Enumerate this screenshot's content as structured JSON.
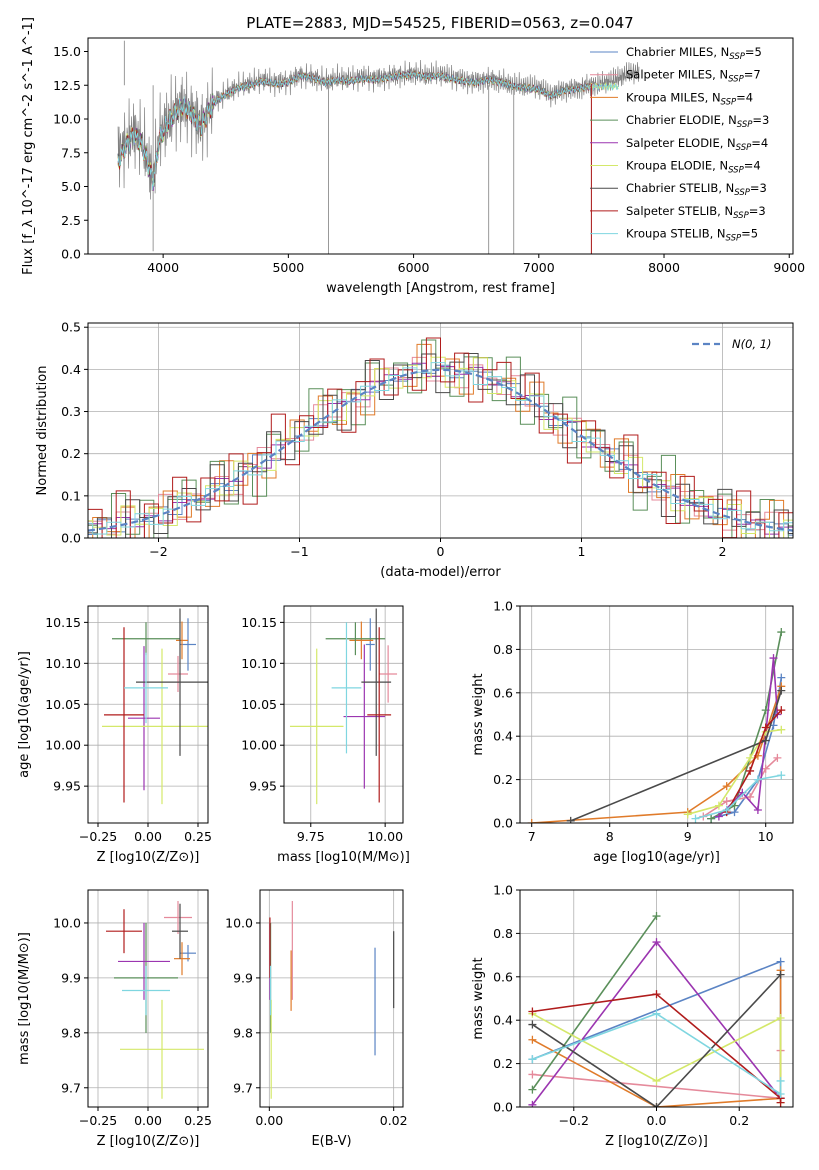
{
  "figure": {
    "title": "PLATE=2883, MJD=54525, FIBERID=0563, z=0.047"
  },
  "colors": [
    "#5b84c4",
    "#e58a9b",
    "#e07b2a",
    "#5a8f5a",
    "#9b35b0",
    "#d4e86a",
    "#4a4a4a",
    "#b01c1c",
    "#7fd6e0"
  ],
  "chart_data": [
    {
      "id": "spectrum",
      "type": "line",
      "xlabel": "wavelength [Angstrom, rest frame]",
      "ylabel": "Flux [f_λ 10^-17 erg cm^-2 s^-1 A^-1]",
      "xlim": [
        3400,
        9030
      ],
      "ylim": [
        0,
        16
      ],
      "xticks": [
        4000,
        5000,
        6000,
        7000,
        8000,
        9000
      ],
      "yticks": [
        0.0,
        2.5,
        5.0,
        7.5,
        10.0,
        12.5,
        15.0
      ],
      "grid": false,
      "legend": "top-right",
      "observed": {
        "color": "#808080",
        "x": [
          3640,
          3700,
          3760,
          3820,
          3870,
          3920,
          3970,
          4020,
          4080,
          4150,
          4220,
          4300,
          4400,
          4500,
          4600,
          4700,
          4800,
          4900,
          5000,
          5100,
          5200,
          5300,
          5400,
          5500,
          5600,
          5700,
          5800,
          5900,
          6000,
          6100,
          6200,
          6300,
          6400,
          6500,
          6600,
          6700,
          6800,
          6900,
          7000,
          7100,
          7200,
          7300,
          7400,
          7500,
          7600,
          7700,
          7800
        ],
        "y": [
          7.5,
          8.2,
          9.0,
          8.5,
          7.2,
          5.5,
          8.8,
          9.6,
          10.4,
          11.0,
          10.6,
          9.5,
          11.3,
          11.9,
          12.4,
          12.6,
          12.9,
          12.7,
          12.8,
          13.3,
          13.1,
          12.8,
          13.0,
          12.9,
          13.1,
          13.0,
          13.2,
          13.3,
          13.4,
          13.2,
          13.3,
          13.1,
          12.9,
          12.8,
          13.0,
          12.8,
          12.5,
          12.4,
          12.3,
          11.8,
          12.2,
          12.3,
          12.5,
          12.6,
          12.9,
          13.3,
          13.5
        ]
      },
      "model": {
        "x": [
          3640,
          3700,
          3760,
          3820,
          3870,
          3920,
          3970,
          4020,
          4080,
          4150,
          4220,
          4300,
          4400,
          4500,
          4600,
          4700,
          4800,
          4900,
          5000,
          5100,
          5200,
          5300,
          5400,
          5500,
          5600,
          5700,
          5800,
          5900,
          6000,
          6100,
          6200,
          6300,
          6400,
          6500,
          6600,
          6700,
          6800,
          6900,
          7000,
          7100,
          7200,
          7300,
          7400
        ],
        "y": [
          6.8,
          8.0,
          8.8,
          8.3,
          7.0,
          5.3,
          8.5,
          9.5,
          10.3,
          11.0,
          10.5,
          9.4,
          11.2,
          11.8,
          12.3,
          12.5,
          12.8,
          12.6,
          12.7,
          13.2,
          13.0,
          12.7,
          12.9,
          12.8,
          13.0,
          12.9,
          13.1,
          13.2,
          13.3,
          13.1,
          13.2,
          13.0,
          12.8,
          12.7,
          12.9,
          12.7,
          12.4,
          12.3,
          12.2,
          11.7,
          12.1,
          12.2,
          12.4
        ]
      },
      "legend_entries": [
        {
          "label": "Chabrier MILES, N",
          "sub": "SSP",
          "value": "=5"
        },
        {
          "label": "Salpeter MILES, N",
          "sub": "SSP",
          "value": "=7"
        },
        {
          "label": "Kroupa MILES, N",
          "sub": "SSP",
          "value": "=4"
        },
        {
          "label": "Chabrier ELODIE, N",
          "sub": "SSP",
          "value": "=3"
        },
        {
          "label": "Salpeter ELODIE, N",
          "sub": "SSP",
          "value": "=4"
        },
        {
          "label": "Kroupa ELODIE, N",
          "sub": "SSP",
          "value": "=4"
        },
        {
          "label": "Chabrier STELIB, N",
          "sub": "SSP",
          "value": "=3"
        },
        {
          "label": "Salpeter STELIB, N",
          "sub": "SSP",
          "value": "=3"
        },
        {
          "label": "Kroupa STELIB, N",
          "sub": "SSP",
          "value": "=5"
        }
      ]
    },
    {
      "id": "residuals",
      "type": "histogram",
      "xlabel": "(data-model)/error",
      "ylabel": "Normed distribution",
      "xlim": [
        -2.5,
        2.5
      ],
      "ylim": [
        0,
        0.51
      ],
      "xticks": [
        -2,
        -1,
        0,
        1,
        2
      ],
      "yticks": [
        0.0,
        0.1,
        0.2,
        0.3,
        0.4,
        0.5
      ],
      "grid": true,
      "legend": "top-right",
      "gaussian_label": "N(0, 1)",
      "bin_width": 0.1,
      "jitter": [
        0.012,
        -0.01,
        0.02,
        -0.015,
        0.008,
        -0.006,
        0.018,
        -0.012,
        0.01,
        -0.008,
        0.015,
        -0.02,
        0.005,
        0.022,
        -0.014,
        0.009,
        -0.004,
        0.013,
        -0.018,
        0.007,
        0.016,
        -0.009,
        0.003,
        -0.011,
        0.019,
        -0.007,
        0.011,
        -0.016,
        0.006,
        0.014,
        -0.003,
        0.017,
        -0.013,
        0.004,
        -0.019,
        0.012,
        0.002,
        -0.01,
        0.021,
        -0.005,
        0.009,
        -0.017,
        0.015,
        -0.002,
        0.008,
        -0.012,
        0.018,
        0.001,
        -0.015,
        0.01
      ]
    },
    {
      "id": "age_vs_Z",
      "type": "errorbar",
      "xlabel": "Z [log10(Z/Z⊙)]",
      "ylabel": "age  [log10(age/yr)]",
      "xlim": [
        -0.3,
        0.3
      ],
      "ylim": [
        9.905,
        10.17
      ],
      "xticks": [
        -0.25,
        0.0,
        0.25
      ],
      "yticks": [
        9.95,
        10.0,
        10.05,
        10.1,
        10.15
      ],
      "points": [
        {
          "x": 0.2,
          "xe": 0.04,
          "y": 10.123,
          "ye": 0.032
        },
        {
          "x": 0.15,
          "xe": 0.05,
          "y": 10.087,
          "ye": 0.022
        },
        {
          "x": 0.17,
          "xe": 0.03,
          "y": 10.128,
          "ye": 0.023
        },
        {
          "x": -0.01,
          "xe": 0.17,
          "y": 10.13,
          "ye": 0.02
        },
        {
          "x": -0.02,
          "xe": 0.08,
          "y": 10.033,
          "ye": 0.088
        },
        {
          "x": 0.07,
          "xe": 0.3,
          "y": 10.023,
          "ye": 0.095
        },
        {
          "x": 0.16,
          "xe": 0.22,
          "y": 10.077,
          "ye": 0.09
        },
        {
          "x": -0.12,
          "xe": 0.1,
          "y": 10.037,
          "ye": 0.107
        },
        {
          "x": -0.01,
          "xe": 0.11,
          "y": 10.07,
          "ye": 0.043
        }
      ]
    },
    {
      "id": "age_vs_mass",
      "type": "errorbar",
      "xlabel": "mass [log10(M/M⊙)]",
      "ylabel": "",
      "xlim": [
        9.66,
        10.06
      ],
      "ylim": [
        9.905,
        10.17
      ],
      "xticks": [
        9.75,
        10.0
      ],
      "yticks": [
        9.95,
        10.0,
        10.05,
        10.1,
        10.15
      ],
      "points": [
        {
          "x": 9.95,
          "xe": 0.015,
          "y": 10.123,
          "ye": 0.032
        },
        {
          "x": 10.01,
          "xe": 0.03,
          "y": 10.087,
          "ye": 0.035
        },
        {
          "x": 9.92,
          "xe": 0.04,
          "y": 10.128,
          "ye": 0.023
        },
        {
          "x": 9.9,
          "xe": 0.1,
          "y": 10.13,
          "ye": 0.02
        },
        {
          "x": 9.93,
          "xe": 0.07,
          "y": 10.035,
          "ye": 0.088
        },
        {
          "x": 9.77,
          "xe": 0.09,
          "y": 10.023,
          "ye": 0.095
        },
        {
          "x": 9.97,
          "xe": 0.05,
          "y": 10.077,
          "ye": 0.09
        },
        {
          "x": 9.98,
          "xe": 0.04,
          "y": 10.037,
          "ye": 0.107
        },
        {
          "x": 9.87,
          "xe": 0.05,
          "y": 10.07,
          "ye": 0.08
        }
      ]
    },
    {
      "id": "weight_vs_age",
      "type": "line",
      "xlabel": "age  [log10(age/yr)]",
      "ylabel": "mass weight",
      "xlim": [
        6.85,
        10.35
      ],
      "ylim": [
        0,
        1.0
      ],
      "xticks": [
        7,
        8,
        9,
        10
      ],
      "yticks": [
        0.0,
        0.2,
        0.4,
        0.6,
        0.8,
        1.0
      ],
      "series": [
        {
          "x": [
            9.3,
            9.6,
            9.9,
            10.1,
            10.2
          ],
          "y": [
            0.02,
            0.05,
            0.2,
            0.45,
            0.67
          ]
        },
        {
          "x": [
            9.2,
            9.5,
            9.8,
            10.0,
            10.15
          ],
          "y": [
            0.03,
            0.1,
            0.12,
            0.25,
            0.3
          ]
        },
        {
          "x": [
            7.0,
            9.0,
            9.5,
            9.9,
            10.2
          ],
          "y": [
            0.0,
            0.05,
            0.17,
            0.31,
            0.63
          ]
        },
        {
          "x": [
            9.3,
            9.6,
            10.0,
            10.2
          ],
          "y": [
            0.02,
            0.08,
            0.52,
            0.88
          ]
        },
        {
          "x": [
            9.4,
            9.7,
            9.9,
            10.1,
            10.15
          ],
          "y": [
            0.03,
            0.14,
            0.06,
            0.76,
            0.5
          ]
        },
        {
          "x": [
            9.0,
            9.4,
            9.8,
            10.0,
            10.2
          ],
          "y": [
            0.04,
            0.08,
            0.3,
            0.42,
            0.43
          ]
        },
        {
          "x": [
            7.5,
            10.0,
            10.2
          ],
          "y": [
            0.01,
            0.38,
            0.61
          ]
        },
        {
          "x": [
            9.5,
            9.8,
            10.0,
            10.2
          ],
          "y": [
            0.05,
            0.24,
            0.44,
            0.52
          ]
        },
        {
          "x": [
            9.1,
            9.5,
            9.9,
            10.2
          ],
          "y": [
            0.02,
            0.06,
            0.2,
            0.22
          ]
        }
      ]
    },
    {
      "id": "mass_vs_Z",
      "type": "errorbar",
      "xlabel": "Z [log10(Z/Z⊙)]",
      "ylabel": "mass [log10(M/M⊙)]",
      "xlim": [
        -0.3,
        0.3
      ],
      "ylim": [
        9.665,
        10.06
      ],
      "xticks": [
        -0.25,
        0.0,
        0.25
      ],
      "yticks": [
        9.7,
        9.8,
        9.9,
        10.0
      ],
      "points": [
        {
          "x": 0.2,
          "xe": 0.04,
          "y": 9.945,
          "ye": 0.015
        },
        {
          "x": 0.15,
          "xe": 0.07,
          "y": 10.01,
          "ye": 0.03
        },
        {
          "x": 0.17,
          "xe": 0.04,
          "y": 9.935,
          "ye": 0.03
        },
        {
          "x": -0.01,
          "xe": 0.16,
          "y": 9.9,
          "ye": 0.1
        },
        {
          "x": -0.02,
          "xe": 0.13,
          "y": 9.93,
          "ye": 0.07
        },
        {
          "x": 0.07,
          "xe": 0.21,
          "y": 9.77,
          "ye": 0.09
        },
        {
          "x": 0.16,
          "xe": 0.04,
          "y": 9.985,
          "ye": 0.05
        },
        {
          "x": -0.12,
          "xe": 0.09,
          "y": 9.985,
          "ye": 0.04
        },
        {
          "x": -0.01,
          "xe": 0.12,
          "y": 9.877,
          "ye": 0.045
        }
      ]
    },
    {
      "id": "mass_vs_EBV",
      "type": "errorbar",
      "xlabel": "E(B-V)",
      "ylabel": "",
      "xlim": [
        -0.0015,
        0.0215
      ],
      "ylim": [
        9.665,
        10.06
      ],
      "xticks": [
        0.0,
        0.02
      ],
      "yticks": [
        9.7,
        9.8,
        9.9,
        10.0
      ],
      "points": [
        {
          "x": 0.017,
          "xe": 0.0,
          "y": 9.857,
          "ye": 0.098
        },
        {
          "x": 0.0037,
          "xe": 0.0,
          "y": 9.95,
          "ye": 0.09
        },
        {
          "x": 0.0035,
          "xe": 0.0,
          "y": 9.895,
          "ye": 0.055
        },
        {
          "x": 0.0002,
          "xe": 0.0,
          "y": 9.9,
          "ye": 0.1
        },
        {
          "x": 0.0001,
          "xe": 0.0,
          "y": 9.93,
          "ye": 0.07
        },
        {
          "x": 0.0003,
          "xe": 0.0,
          "y": 9.77,
          "ye": 0.09
        },
        {
          "x": 0.02,
          "xe": 0.0,
          "y": 9.915,
          "ye": 0.07
        },
        {
          "x": 0.0001,
          "xe": 0.0,
          "y": 9.955,
          "ye": 0.055
        },
        {
          "x": 0.0002,
          "xe": 0.0,
          "y": 9.877,
          "ye": 0.045
        }
      ]
    },
    {
      "id": "weight_vs_Z",
      "type": "line",
      "xlabel": "Z [log10(Z/Z⊙)]",
      "ylabel": "mass weight",
      "xlim": [
        -0.33,
        0.33
      ],
      "ylim": [
        0,
        1.0
      ],
      "xticks": [
        -0.2,
        0.0,
        0.2
      ],
      "yticks": [
        0.0,
        0.2,
        0.4,
        0.6,
        0.8,
        1.0
      ],
      "series": [
        {
          "x": [
            -0.3,
            0.3,
            0.3
          ],
          "y": [
            0.22,
            0.67,
            0.04
          ]
        },
        {
          "x": [
            -0.3,
            0.3,
            0.3
          ],
          "y": [
            0.15,
            0.04,
            0.26
          ]
        },
        {
          "x": [
            -0.3,
            0.0,
            0.3,
            0.3
          ],
          "y": [
            0.31,
            0.0,
            0.04,
            0.63
          ]
        },
        {
          "x": [
            -0.3,
            0.0
          ],
          "y": [
            0.08,
            0.88
          ]
        },
        {
          "x": [
            -0.3,
            0.0,
            0.3
          ],
          "y": [
            0.01,
            0.76,
            0.04
          ]
        },
        {
          "x": [
            -0.3,
            0.0,
            0.3,
            0.3
          ],
          "y": [
            0.43,
            0.12,
            0.41,
            0.02
          ]
        },
        {
          "x": [
            -0.3,
            0.0,
            0.3
          ],
          "y": [
            0.38,
            0.0,
            0.61
          ]
        },
        {
          "x": [
            -0.3,
            0.0,
            0.3,
            0.3
          ],
          "y": [
            0.44,
            0.52,
            0.04,
            0.02
          ]
        },
        {
          "x": [
            -0.3,
            0.0,
            0.3,
            0.3
          ],
          "y": [
            0.22,
            0.43,
            0.06,
            0.12
          ]
        }
      ]
    }
  ]
}
